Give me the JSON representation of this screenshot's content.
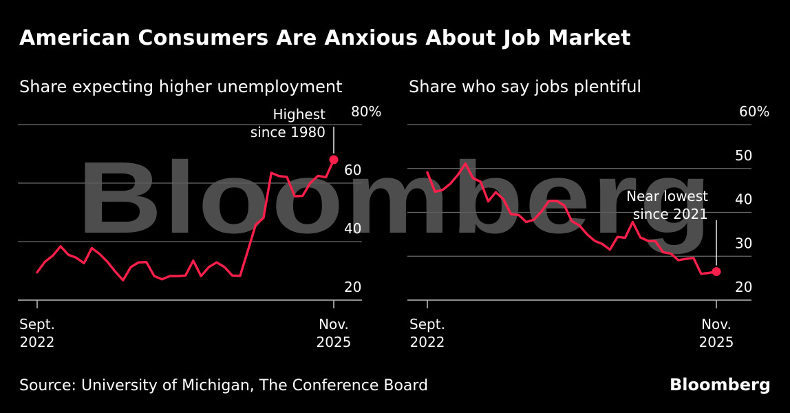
{
  "title": "American Consumers Are Anxious About Job Market",
  "source": "Source: University of Michigan, The Conference Board",
  "brand": "Bloomberg",
  "watermark": "Bloomberg",
  "colors": {
    "line": "#ff1f4b",
    "grid": "#6b6b6b",
    "background": "#000000",
    "text": "#ffffff",
    "watermark": "#5a5a5a"
  },
  "chart_data": [
    {
      "type": "line",
      "title": "Share expecting higher unemployment",
      "ylim": [
        20,
        80
      ],
      "yticks": [
        {
          "value": 20,
          "label": "20"
        },
        {
          "value": 40,
          "label": "40"
        },
        {
          "value": 60,
          "label": "60"
        },
        {
          "value": 80,
          "label": "80%"
        }
      ],
      "xticks": [
        {
          "date": "2022-09",
          "line1": "Sept.",
          "line2": "2022"
        },
        {
          "date": "2025-11",
          "line1": "Nov.",
          "line2": "2025"
        }
      ],
      "x_start": "2022-09",
      "x_end": "2025-11",
      "series": [
        {
          "values": [
            29.5,
            33.1,
            35.2,
            38.4,
            35.5,
            34.5,
            32.6,
            37.8,
            35.8,
            33.1,
            29.8,
            26.8,
            31.3,
            32.9,
            33.0,
            28.2,
            27.1,
            28.2,
            28.2,
            28.4,
            33.5,
            28.2,
            31.3,
            32.9,
            31.3,
            28.4,
            28.3,
            36.9,
            45.8,
            48.1,
            63.5,
            62.4,
            62.1,
            55.5,
            55.6,
            60.1,
            62.5,
            62.0,
            68.0
          ]
        }
      ],
      "annotation": {
        "line1": "Highest",
        "line2": "since 1980",
        "date": "2025-11",
        "value": 68.0
      }
    },
    {
      "type": "line",
      "title": "Share who say jobs plentiful",
      "ylim": [
        20,
        60
      ],
      "yticks": [
        {
          "value": 20,
          "label": "20"
        },
        {
          "value": 30,
          "label": "30"
        },
        {
          "value": 40,
          "label": "40"
        },
        {
          "value": 50,
          "label": "50"
        },
        {
          "value": 60,
          "label": "60%"
        }
      ],
      "xticks": [
        {
          "date": "2022-09",
          "line1": "Sept.",
          "line2": "2022"
        },
        {
          "date": "2025-11",
          "line1": "Nov.",
          "line2": "2025"
        }
      ],
      "x_start": "2022-09",
      "x_end": "2025-11",
      "series": [
        {
          "values": [
            49.1,
            44.7,
            45.1,
            46.5,
            48.5,
            51.1,
            47.8,
            47.0,
            42.5,
            44.6,
            43.0,
            39.6,
            39.4,
            37.8,
            38.3,
            40.2,
            42.6,
            42.6,
            41.6,
            38.0,
            37.0,
            35.0,
            33.5,
            32.8,
            31.5,
            34.4,
            34.2,
            37.8,
            34.3,
            33.5,
            33.4,
            30.9,
            30.6,
            29.1,
            29.4,
            29.6,
            26.0,
            26.2,
            26.5
          ]
        }
      ],
      "annotation": {
        "line1": "Near lowest",
        "line2": "since 2021",
        "date": "2025-11",
        "value": 26.5
      }
    }
  ]
}
